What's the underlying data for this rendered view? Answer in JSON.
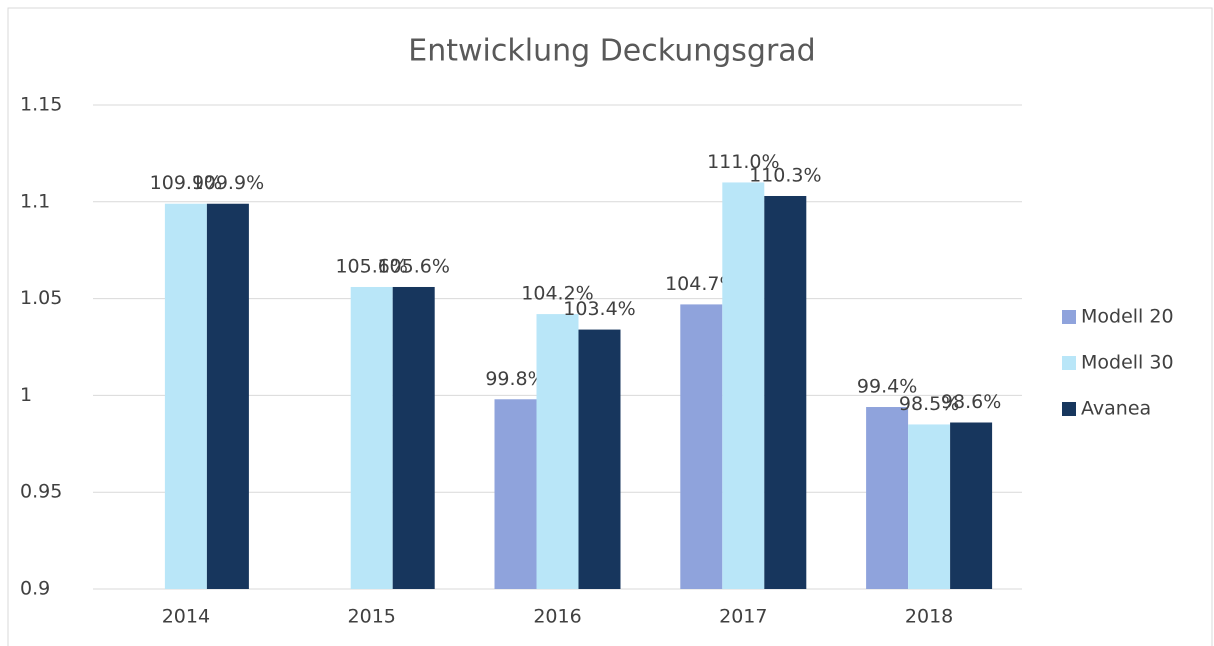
{
  "chart_data": {
    "type": "bar",
    "title": "Entwicklung Deckungsgrad",
    "categories": [
      "2014",
      "2015",
      "2016",
      "2017",
      "2018"
    ],
    "series": [
      {
        "name": "Modell 20",
        "color": "#8fa3dc",
        "values": [
          null,
          null,
          0.998,
          1.047,
          0.994
        ],
        "value_labels": [
          null,
          null,
          "99.8%",
          "104.7%",
          "99.4%"
        ]
      },
      {
        "name": "Modell 30",
        "color": "#b9e6f8",
        "values": [
          1.099,
          1.056,
          1.042,
          1.11,
          0.985
        ],
        "value_labels": [
          "109.9%",
          "105.6%",
          "104.2%",
          "111.0%",
          "98.5%"
        ]
      },
      {
        "name": "Avanea",
        "color": "#17365d",
        "values": [
          1.099,
          1.056,
          1.034,
          1.103,
          0.986
        ],
        "value_labels": [
          "109.9%",
          "105.6%",
          "103.4%",
          "110.3%",
          "98.6%"
        ]
      }
    ],
    "ylim": [
      0.9,
      1.15
    ],
    "yticks": [
      0.9,
      0.95,
      1,
      1.05,
      1.1,
      1.15
    ],
    "grid": true,
    "legend": "right"
  }
}
